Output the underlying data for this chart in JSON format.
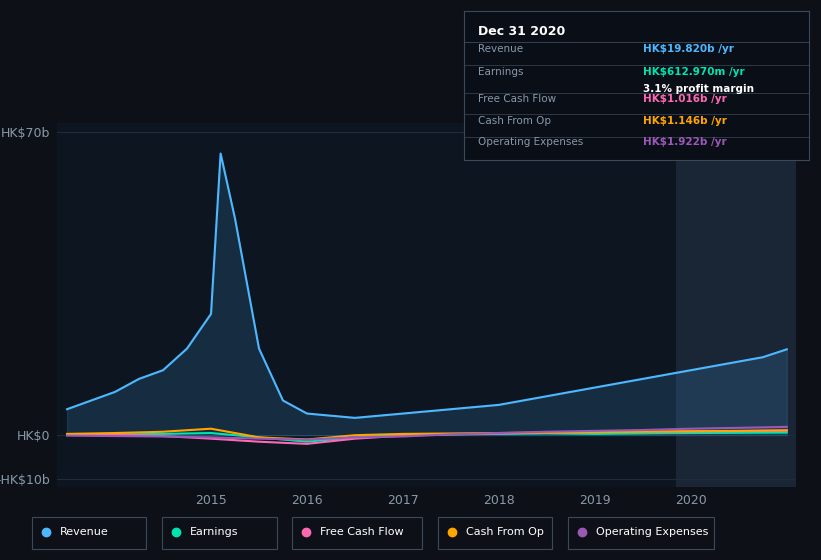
{
  "bg_color": "#0d1117",
  "plot_bg_color": "#0d1520",
  "grid_color": "#1e2d3d",
  "highlight_bg": "#1a2535",
  "title": "Dec 31 2020",
  "table_data": {
    "Revenue": {
      "value": "HK$19.820b /yr",
      "color": "#4db8ff"
    },
    "Earnings": {
      "value": "HK$612.970m /yr",
      "color": "#00e5b0",
      "sub": "3.1% profit margin"
    },
    "Free Cash Flow": {
      "value": "HK$1.016b /yr",
      "color": "#ff69b4"
    },
    "Cash From Op": {
      "value": "HK$1.146b /yr",
      "color": "#ffa500"
    },
    "Operating Expenses": {
      "value": "HK$1.922b /yr",
      "color": "#9b59b6"
    }
  },
  "series": {
    "Revenue": {
      "color": "#4db8ff",
      "x": [
        2013.5,
        2014.0,
        2014.25,
        2014.5,
        2014.75,
        2015.0,
        2015.1,
        2015.25,
        2015.5,
        2015.75,
        2016.0,
        2016.25,
        2016.5,
        2016.75,
        2017.0,
        2017.25,
        2017.5,
        2017.75,
        2018.0,
        2018.25,
        2018.5,
        2018.75,
        2019.0,
        2019.25,
        2019.5,
        2019.75,
        2020.0,
        2020.25,
        2020.5,
        2020.75,
        2021.0
      ],
      "y": [
        6,
        10,
        13,
        15,
        20,
        28,
        65,
        50,
        20,
        8,
        5,
        4.5,
        4,
        4.5,
        5,
        5.5,
        6,
        6.5,
        7,
        8,
        9,
        10,
        11,
        12,
        13,
        14,
        15,
        16,
        17,
        18,
        19.82
      ]
    },
    "Earnings": {
      "color": "#00e5b0",
      "x": [
        2013.5,
        2014.0,
        2014.5,
        2015.0,
        2015.5,
        2016.0,
        2016.5,
        2017.0,
        2017.5,
        2018.0,
        2018.5,
        2019.0,
        2019.5,
        2020.0,
        2020.5,
        2021.0
      ],
      "y": [
        0.1,
        0.2,
        0.3,
        0.5,
        -0.5,
        -1.5,
        -0.5,
        0.1,
        0.2,
        0.3,
        0.4,
        0.3,
        0.4,
        0.5,
        0.55,
        0.613
      ]
    },
    "Free Cash Flow": {
      "color": "#ff69b4",
      "x": [
        2013.5,
        2014.0,
        2014.5,
        2015.0,
        2015.5,
        2016.0,
        2016.5,
        2017.0,
        2017.5,
        2018.0,
        2018.5,
        2019.0,
        2019.5,
        2020.0,
        2020.5,
        2021.0
      ],
      "y": [
        0.05,
        0.1,
        -0.2,
        -0.8,
        -1.5,
        -2.0,
        -0.8,
        -0.1,
        0.2,
        0.4,
        0.6,
        0.7,
        0.8,
        0.9,
        0.95,
        1.016
      ]
    },
    "Cash From Op": {
      "color": "#ffa500",
      "x": [
        2013.5,
        2014.0,
        2014.5,
        2015.0,
        2015.5,
        2016.0,
        2016.5,
        2017.0,
        2017.5,
        2018.0,
        2018.5,
        2019.0,
        2019.5,
        2020.0,
        2020.5,
        2021.0
      ],
      "y": [
        0.3,
        0.5,
        0.8,
        1.5,
        -0.5,
        -1.0,
        0.0,
        0.3,
        0.4,
        0.5,
        0.6,
        0.7,
        0.8,
        0.9,
        1.0,
        1.146
      ]
    },
    "Operating Expenses": {
      "color": "#9b59b6",
      "x": [
        2013.5,
        2014.0,
        2014.5,
        2015.0,
        2015.5,
        2016.0,
        2016.5,
        2017.0,
        2017.5,
        2018.0,
        2018.5,
        2019.0,
        2019.5,
        2020.0,
        2020.5,
        2021.0
      ],
      "y": [
        -0.1,
        -0.2,
        -0.3,
        -0.5,
        -0.8,
        -1.0,
        -0.5,
        -0.3,
        0.2,
        0.5,
        0.8,
        1.0,
        1.2,
        1.5,
        1.7,
        1.922
      ]
    }
  },
  "yticks": [
    -10,
    0,
    70
  ],
  "ytick_labels": [
    "-HK$10b",
    "HK$0",
    "HK$70b"
  ],
  "xticks": [
    2015,
    2016,
    2017,
    2018,
    2019,
    2020
  ],
  "xlim": [
    2013.4,
    2021.1
  ],
  "ylim": [
    -12,
    72
  ],
  "highlight_x_start": 2019.85,
  "highlight_x_end": 2021.1,
  "legend_items": [
    {
      "label": "Revenue",
      "color": "#4db8ff"
    },
    {
      "label": "Earnings",
      "color": "#00e5b0"
    },
    {
      "label": "Free Cash Flow",
      "color": "#ff69b4"
    },
    {
      "label": "Cash From Op",
      "color": "#ffa500"
    },
    {
      "label": "Operating Expenses",
      "color": "#9b59b6"
    }
  ]
}
